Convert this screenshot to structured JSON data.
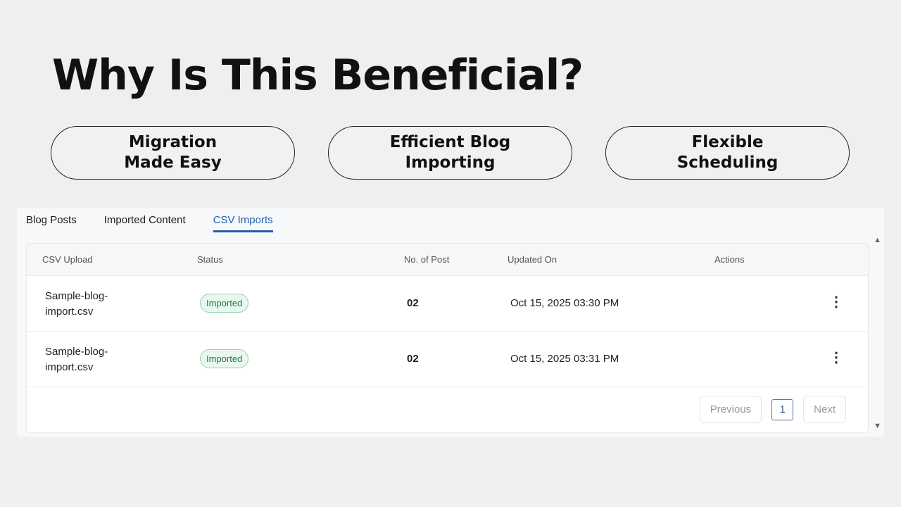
{
  "title": "Why Is This Beneficial?",
  "benefits": [
    "Migration\nMade Easy",
    "Efficient Blog\nImporting",
    "Flexible\nScheduling"
  ],
  "tabs": [
    {
      "label": "Blog Posts"
    },
    {
      "label": "Imported Content"
    },
    {
      "label": "CSV Imports",
      "active": true
    }
  ],
  "table": {
    "columns": [
      "CSV Upload",
      "Status",
      "No. of Post",
      "Updated On",
      "Actions"
    ],
    "rows": [
      {
        "file": "Sample-blog-\nimport.csv",
        "status": "Imported",
        "posts": "02",
        "updated": "Oct 15, 2025 03:30 PM"
      },
      {
        "file": "Sample-blog-\nimport.csv",
        "status": "Imported",
        "posts": "02",
        "updated": "Oct 15, 2025 03:31 PM"
      }
    ]
  },
  "pagination": {
    "previous": "Previous",
    "page": "1",
    "next": "Next"
  },
  "icons": {
    "actions": "more-vertical-icon",
    "scroll_up": "scroll-up-arrow",
    "scroll_down": "scroll-down-arrow"
  },
  "colors": {
    "accent": "#1f5fb0",
    "status_imported": "#1f7a48"
  }
}
